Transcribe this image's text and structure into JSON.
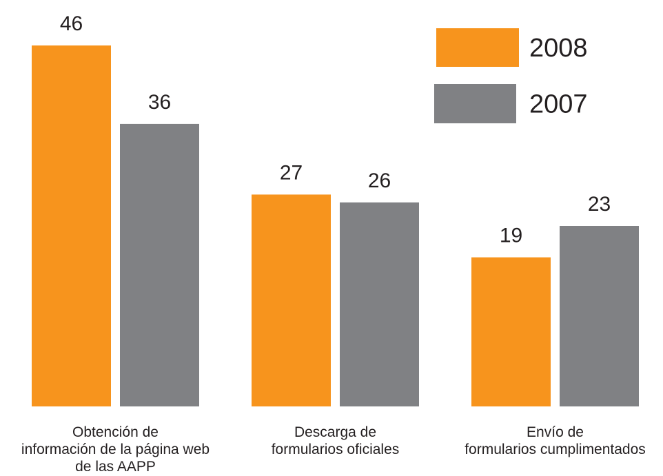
{
  "chart_data": {
    "type": "bar",
    "categories": [
      [
        "Obtención de",
        "información de la página web",
        "de las AAPP"
      ],
      [
        "Descarga de",
        "formularios oficiales"
      ],
      [
        "Envío de",
        "formularios cumplimentados"
      ]
    ],
    "series": [
      {
        "name": "2008",
        "color": "#f7941d",
        "values": [
          46,
          27,
          19
        ]
      },
      {
        "name": "2007",
        "color": "#808184",
        "values": [
          36,
          26,
          23
        ]
      }
    ],
    "title": "",
    "xlabel": "",
    "ylabel": "",
    "ylim": [
      0,
      46
    ],
    "grid": false,
    "legend": "top-right",
    "data_labels": true
  }
}
